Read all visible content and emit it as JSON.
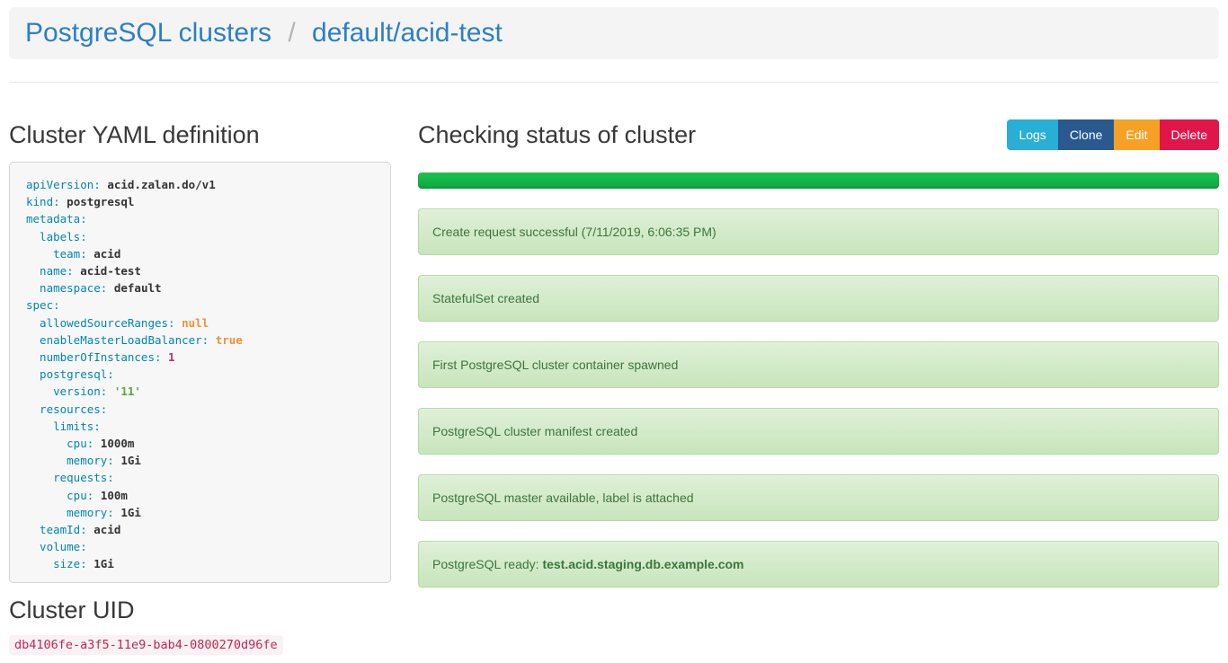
{
  "breadcrumb": {
    "root": "PostgreSQL clusters",
    "separator": "/",
    "current": "default/acid-test"
  },
  "yaml_section": {
    "title": "Cluster YAML definition",
    "lines": [
      {
        "k": "apiVersion:",
        "v": "acid.zalan.do/v1",
        "type": "plain"
      },
      {
        "k": "kind:",
        "v": "postgresql",
        "type": "plain"
      },
      {
        "k": "metadata:",
        "v": "",
        "type": "none"
      },
      {
        "k": "  labels:",
        "v": "",
        "type": "none"
      },
      {
        "k": "    team:",
        "v": "acid",
        "type": "plain"
      },
      {
        "k": "  name:",
        "v": "acid-test",
        "type": "plain"
      },
      {
        "k": "  namespace:",
        "v": "default",
        "type": "plain"
      },
      {
        "k": "spec:",
        "v": "",
        "type": "none"
      },
      {
        "k": "  allowedSourceRanges:",
        "v": "null",
        "type": "literal"
      },
      {
        "k": "  enableMasterLoadBalancer:",
        "v": "true",
        "type": "literal"
      },
      {
        "k": "  numberOfInstances:",
        "v": "1",
        "type": "number"
      },
      {
        "k": "  postgresql:",
        "v": "",
        "type": "none"
      },
      {
        "k": "    version:",
        "v": "'11'",
        "type": "string"
      },
      {
        "k": "  resources:",
        "v": "",
        "type": "none"
      },
      {
        "k": "    limits:",
        "v": "",
        "type": "none"
      },
      {
        "k": "      cpu:",
        "v": "1000m",
        "type": "plain"
      },
      {
        "k": "      memory:",
        "v": "1Gi",
        "type": "plain"
      },
      {
        "k": "    requests:",
        "v": "",
        "type": "none"
      },
      {
        "k": "      cpu:",
        "v": "100m",
        "type": "plain"
      },
      {
        "k": "      memory:",
        "v": "1Gi",
        "type": "plain"
      },
      {
        "k": "  teamId:",
        "v": "acid",
        "type": "plain"
      },
      {
        "k": "  volume:",
        "v": "",
        "type": "none"
      },
      {
        "k": "    size:",
        "v": "1Gi",
        "type": "plain"
      }
    ]
  },
  "uid_section": {
    "title": "Cluster UID",
    "uid": "db4106fe-a3f5-11e9-bab4-0800270d96fe"
  },
  "status_section": {
    "title": "Checking status of cluster",
    "buttons": [
      {
        "label": "Logs",
        "color": "#29aed6"
      },
      {
        "label": "Clone",
        "color": "#29598e"
      },
      {
        "label": "Edit",
        "color": "#f6a126"
      },
      {
        "label": "Delete",
        "color": "#e0164a"
      }
    ],
    "progress": {
      "percent": 100,
      "color": "#14b54a"
    },
    "messages": [
      {
        "text": "Create request successful (7/11/2019, 6:06:35 PM)"
      },
      {
        "text": "StatefulSet created"
      },
      {
        "text": "First PostgreSQL cluster container spawned"
      },
      {
        "text": "PostgreSQL cluster manifest created"
      },
      {
        "text": "PostgreSQL master available, label is attached"
      },
      {
        "text": "PostgreSQL ready: ",
        "bold": "test.acid.staging.db.example.com"
      }
    ]
  },
  "colors": {
    "link_blue": "#2d7fc4",
    "band_bg": "#f4f4f4",
    "yaml_key": "#0086b3",
    "yaml_literal": "#f09235",
    "yaml_number": "#bd2d6e",
    "yaml_string": "#55ab3f",
    "alert_text": "#3c763d",
    "alert_bg_top": "#dff0d8",
    "alert_bg_bottom": "#c8e5bc",
    "alert_border": "#b2dba1",
    "uid_text": "#c7254e",
    "uid_bg": "#f9f2f4"
  }
}
